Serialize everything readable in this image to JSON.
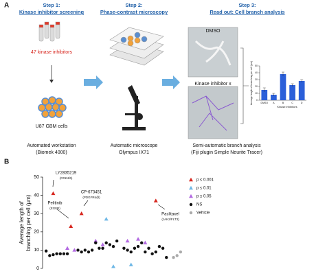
{
  "panel_a": {
    "label": "A",
    "step1": {
      "title": "Step 1:",
      "subtitle": "Kinase inhibitor screening",
      "compounds": "47 kinase inhibitors",
      "cells": "U87 GBM cells",
      "caption": [
        "Automated workstation",
        "(Biomek 4000)"
      ]
    },
    "step2": {
      "title": "Step 2:",
      "subtitle": "Phase-contrast microscopy",
      "caption": [
        "Automatic microscope",
        "Olympus IX71"
      ]
    },
    "step3": {
      "title": "Step 3:",
      "subtitle": "Read out: Cell branch analysis",
      "image1": "DMSO",
      "image2": "Kinase inhibitor x",
      "caption": [
        "Semi-automatic branch analysis",
        "(Fiji plugin Simple Neurite Tracer)"
      ]
    }
  },
  "panel_b": {
    "label": "B"
  },
  "chart_data": [
    {
      "type": "bar",
      "ylabel": "Average length of branching per cell (µm)",
      "xlabel": "Kinase inhibitors",
      "categories": [
        "DMSO",
        "A",
        "B",
        "C",
        "D"
      ],
      "values": [
        15,
        8,
        38,
        22,
        28
      ],
      "errors": [
        3,
        2,
        3,
        2,
        2
      ],
      "color": "#2b5fd9",
      "ylim": [
        0,
        50
      ],
      "yticks": [
        0,
        10,
        20,
        30,
        40,
        50
      ]
    },
    {
      "type": "scatter",
      "ylabel": [
        "Average length of",
        "branching per cell (µm)"
      ],
      "xlim": [
        0,
        40
      ],
      "ylim": [
        0,
        50
      ],
      "yticks": [
        0,
        10,
        20,
        30,
        40,
        50
      ],
      "series": [
        {
          "name": "p ≤ 0.001",
          "color": "#d7261e",
          "marker": "triangle",
          "x": [
            3,
            8,
            11,
            32
          ],
          "values": [
            41,
            23,
            30,
            37
          ]
        },
        {
          "name": "p ≤ 0.01",
          "color": "#6fb8e6",
          "marker": "triangle",
          "x": [
            18,
            20,
            25
          ],
          "values": [
            27,
            1,
            2
          ]
        },
        {
          "name": "p ≤ 0.05",
          "color": "#b36ae2",
          "marker": "triangle",
          "x": [
            7,
            9,
            15,
            17,
            24,
            27,
            29
          ],
          "values": [
            11,
            10,
            15,
            13,
            15,
            16,
            14
          ]
        },
        {
          "name": "NS",
          "color": "#111111",
          "marker": "circle",
          "x": [
            1,
            2,
            3,
            4,
            5,
            6,
            7,
            10,
            11,
            12,
            13,
            14,
            15,
            16,
            17,
            18,
            19,
            20,
            21,
            23,
            24,
            25,
            26,
            27,
            28,
            29,
            30,
            31,
            32,
            33,
            34,
            35
          ],
          "values": [
            9.5,
            7,
            7.5,
            8,
            8,
            8,
            8,
            10,
            9,
            10,
            9,
            10,
            14,
            11,
            11,
            14,
            13,
            12,
            15,
            11,
            10,
            9,
            11,
            12,
            14,
            9,
            11,
            8,
            9,
            12,
            11,
            6
          ]
        },
        {
          "name": "Vehicle",
          "color": "#aaaaaa",
          "marker": "circle",
          "x": [
            37,
            38,
            39
          ],
          "values": [
            6,
            7,
            9
          ]
        }
      ],
      "annotations": [
        {
          "text": [
            "LY2835219",
            "(CDK4/6)"
          ]
        },
        {
          "text": [
            "Pelitinib",
            "(EGFR)"
          ]
        },
        {
          "text": [
            "CP-673451",
            "(PDGFRα/β)"
          ]
        },
        {
          "text": [
            "Paclitaxel",
            "(JAK2/FLT3)"
          ]
        }
      ]
    }
  ]
}
